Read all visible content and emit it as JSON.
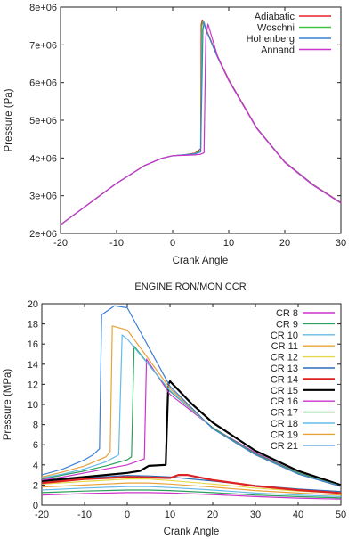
{
  "chart_data": [
    {
      "type": "line",
      "title": "",
      "xlabel": "Crank Angle",
      "ylabel": "Pressure (Pa)",
      "xlim": [
        -20,
        30
      ],
      "ylim": [
        2000000,
        8000000
      ],
      "xticks": [
        -20,
        -10,
        0,
        10,
        20,
        30
      ],
      "yticks": [
        2000000,
        3000000,
        4000000,
        5000000,
        6000000,
        7000000,
        8000000
      ],
      "xtick_labels": [
        "-20",
        "-10",
        "0",
        "10",
        "20",
        "30"
      ],
      "ytick_labels": [
        "2e+06",
        "3e+06",
        "4e+06",
        "5e+06",
        "6e+06",
        "7e+06",
        "8e+06"
      ],
      "legend_position": "top-right",
      "series": [
        {
          "name": "Adiabatic",
          "color": "#e8222a",
          "x": [
            -20,
            -15,
            -10,
            -5,
            -2,
            0,
            2,
            4,
            5,
            5.1,
            5.3,
            6,
            8,
            10,
            15,
            20,
            25,
            30
          ],
          "y": [
            2230000,
            2780000,
            3330000,
            3800000,
            3990000,
            4060000,
            4080000,
            4130000,
            4250000,
            7550000,
            7650000,
            7400000,
            6700000,
            6080000,
            4800000,
            3900000,
            3300000,
            2820000
          ]
        },
        {
          "name": "Woschni",
          "color": "#3ec43e",
          "x": [
            -20,
            -15,
            -10,
            -5,
            -2,
            0,
            2,
            4,
            5,
            5.2,
            5.4,
            6,
            8,
            10,
            15,
            20,
            25,
            30
          ],
          "y": [
            2230000,
            2780000,
            3330000,
            3800000,
            3990000,
            4060000,
            4080000,
            4120000,
            4200000,
            7500000,
            7620000,
            7380000,
            6680000,
            6060000,
            4790000,
            3890000,
            3290000,
            2810000
          ]
        },
        {
          "name": "Hohenberg",
          "color": "#3d7fd6",
          "x": [
            -20,
            -15,
            -10,
            -5,
            -2,
            0,
            2,
            4,
            5,
            5.4,
            5.6,
            6,
            8,
            10,
            15,
            20,
            25,
            30
          ],
          "y": [
            2230000,
            2780000,
            3330000,
            3800000,
            3990000,
            4060000,
            4080000,
            4110000,
            4160000,
            7400000,
            7600000,
            7380000,
            6670000,
            6060000,
            4790000,
            3890000,
            3290000,
            2810000
          ]
        },
        {
          "name": "Annand",
          "color": "#cc33cc",
          "x": [
            -20,
            -15,
            -10,
            -5,
            -2,
            0,
            2,
            4,
            5,
            5.6,
            5.9,
            6.3,
            8,
            10,
            15,
            20,
            25,
            30
          ],
          "y": [
            2230000,
            2780000,
            3330000,
            3800000,
            3990000,
            4060000,
            4070000,
            4080000,
            4100000,
            4140000,
            7200000,
            7550000,
            6700000,
            6050000,
            4780000,
            3880000,
            3280000,
            2800000
          ]
        }
      ]
    },
    {
      "type": "line",
      "title": "ENGINE RON/MON CCR",
      "xlabel": "Crank Angle",
      "ylabel": "Pressure (MPa)",
      "xlim": [
        -20,
        50
      ],
      "ylim": [
        0,
        20
      ],
      "xticks": [
        -20,
        -10,
        0,
        10,
        20,
        30,
        40,
        50
      ],
      "yticks": [
        0,
        2,
        4,
        6,
        8,
        10,
        12,
        14,
        16,
        18,
        20
      ],
      "xtick_labels": [
        "-20",
        "-10",
        "0",
        "10",
        "20",
        "30",
        "40",
        "50"
      ],
      "ytick_labels": [
        "0",
        "2",
        "4",
        "6",
        "8",
        "10",
        "12",
        "14",
        "16",
        "18",
        "20"
      ],
      "legend_position": "top-right",
      "series": [
        {
          "name": "CR 8",
          "color": "#cc33cc",
          "x": [
            -20,
            -10,
            0,
            5,
            10,
            20,
            30,
            40,
            50
          ],
          "y": [
            1.0,
            1.15,
            1.25,
            1.25,
            1.2,
            1.05,
            0.85,
            0.7,
            0.6
          ]
        },
        {
          "name": "CR 9",
          "color": "#2aa05a",
          "x": [
            -20,
            -10,
            0,
            5,
            10,
            20,
            30,
            40,
            50
          ],
          "y": [
            1.25,
            1.4,
            1.5,
            1.5,
            1.45,
            1.25,
            1.0,
            0.85,
            0.72
          ]
        },
        {
          "name": "CR 10",
          "color": "#66bbe8",
          "x": [
            -20,
            -10,
            0,
            5,
            10,
            20,
            30,
            40,
            50
          ],
          "y": [
            1.5,
            1.7,
            1.85,
            1.85,
            1.75,
            1.5,
            1.2,
            1.0,
            0.85
          ]
        },
        {
          "name": "CR 11",
          "color": "#e8a23a",
          "x": [
            -20,
            -10,
            0,
            5,
            10,
            20,
            30,
            40,
            50
          ],
          "y": [
            1.8,
            2.0,
            2.2,
            2.2,
            2.1,
            1.8,
            1.45,
            1.2,
            1.0
          ]
        },
        {
          "name": "CR 12",
          "color": "#e6d84a",
          "x": [
            -20,
            -10,
            0,
            5,
            10,
            20,
            30,
            40,
            50
          ],
          "y": [
            2.1,
            2.35,
            2.6,
            2.6,
            2.45,
            2.1,
            1.7,
            1.4,
            1.2
          ]
        },
        {
          "name": "CR 13",
          "color": "#2e6cb8",
          "x": [
            -20,
            -10,
            0,
            5,
            10,
            20,
            30,
            40,
            50
          ],
          "y": [
            2.4,
            2.7,
            2.95,
            2.9,
            2.8,
            2.4,
            1.95,
            1.6,
            1.35
          ]
        },
        {
          "name": "CR 14",
          "color": "#dd2222",
          "x": [
            -20,
            -10,
            0,
            5,
            10,
            12,
            14,
            20,
            30,
            40,
            50
          ],
          "y": [
            2.2,
            2.6,
            2.8,
            2.75,
            2.7,
            3.0,
            3.0,
            2.5,
            1.9,
            1.5,
            1.2
          ]
        },
        {
          "name": "CR 15",
          "color": "#000000",
          "x": [
            -20,
            -15,
            -10,
            -5,
            0,
            3,
            5,
            9,
            9.6,
            10,
            15,
            20,
            30,
            40,
            50
          ],
          "y": [
            2.4,
            2.6,
            2.8,
            3.0,
            3.2,
            3.4,
            3.9,
            4.0,
            12.0,
            12.3,
            10.1,
            8.2,
            5.4,
            3.4,
            2.0
          ]
        },
        {
          "name": "CR 16",
          "color": "#cc33cc",
          "x": [
            -20,
            -15,
            -10,
            -5,
            0,
            2,
            4,
            4.5,
            10,
            20,
            30,
            40,
            50
          ],
          "y": [
            2.5,
            2.8,
            3.2,
            3.6,
            4.0,
            4.3,
            4.6,
            14.5,
            11.0,
            7.7,
            5.2,
            3.2,
            1.9
          ]
        },
        {
          "name": "CR 17",
          "color": "#2aa05a",
          "x": [
            -20,
            -15,
            -10,
            -5,
            0,
            1,
            1.6,
            10,
            20,
            30,
            40,
            50
          ],
          "y": [
            2.6,
            3.0,
            3.4,
            3.9,
            4.5,
            4.8,
            15.8,
            11.3,
            7.7,
            5.1,
            3.2,
            1.9
          ]
        },
        {
          "name": "CR 18",
          "color": "#66bbe8",
          "x": [
            -20,
            -15,
            -10,
            -5,
            -2,
            -1.2,
            0,
            10,
            20,
            30,
            40,
            50
          ],
          "y": [
            2.7,
            3.1,
            3.6,
            4.3,
            5.0,
            16.9,
            16.5,
            11.4,
            7.6,
            5.0,
            3.1,
            1.85
          ]
        },
        {
          "name": "CR 19",
          "color": "#e8a23a",
          "x": [
            -20,
            -15,
            -10,
            -5,
            -4,
            -3.5,
            0,
            10,
            20,
            30,
            40,
            50
          ],
          "y": [
            2.8,
            3.3,
            3.9,
            4.8,
            5.3,
            17.8,
            17.4,
            11.6,
            7.6,
            5.0,
            3.1,
            1.85
          ]
        },
        {
          "name": "CR 21",
          "color": "#3d7fd6",
          "x": [
            -20,
            -15,
            -10,
            -8,
            -6.5,
            -6,
            -3,
            0,
            10,
            20,
            30,
            40,
            50
          ],
          "y": [
            3.0,
            3.6,
            4.5,
            5.0,
            5.6,
            18.9,
            19.8,
            19.6,
            11.8,
            7.6,
            5.0,
            3.1,
            1.85
          ]
        }
      ]
    }
  ]
}
